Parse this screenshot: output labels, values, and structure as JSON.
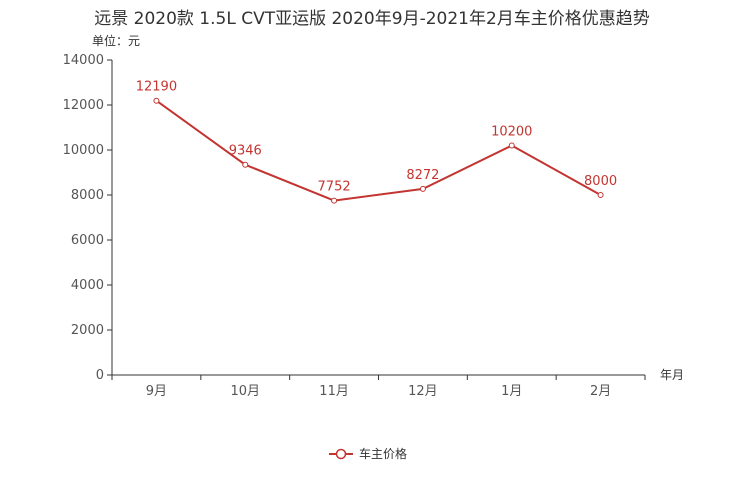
{
  "chart_data": {
    "type": "line",
    "title": "远景 2020款 1.5L CVT亚运版 2020年9月-2021年2月车主价格优惠趋势",
    "ylabel": "单位：元",
    "xlabel": "年月",
    "categories": [
      "9月",
      "10月",
      "11月",
      "12月",
      "1月",
      "2月"
    ],
    "series": [
      {
        "name": "车主价格",
        "values": [
          12190,
          9346,
          7752,
          8272,
          10200,
          8000
        ]
      }
    ],
    "ylim": [
      0,
      14000
    ],
    "y_ticks": [
      0,
      2000,
      4000,
      6000,
      8000,
      10000,
      12000,
      14000
    ],
    "legend": "bottom-center",
    "color": "#c23531",
    "grid": false
  }
}
